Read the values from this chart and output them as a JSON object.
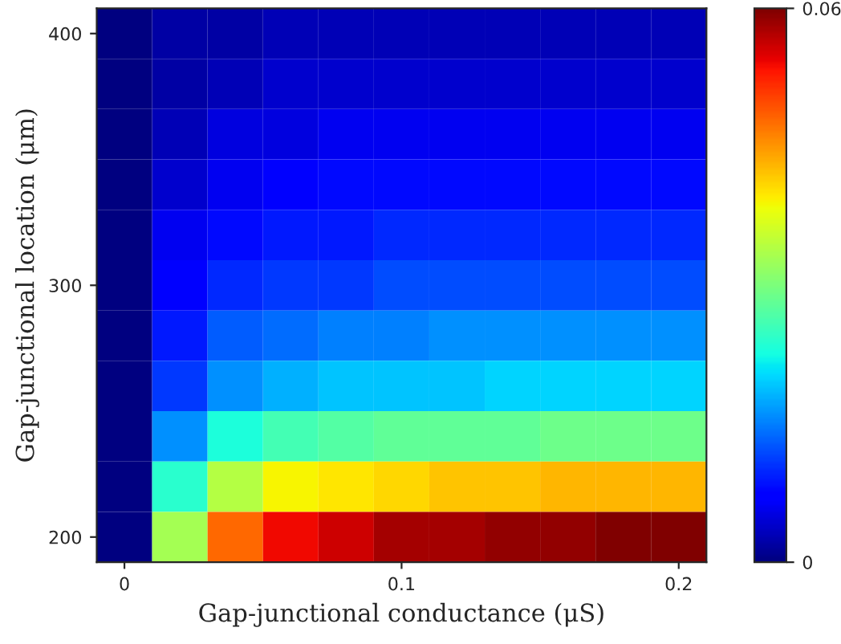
{
  "chart_data": {
    "type": "heatmap",
    "xlabel": "Gap-junctional conductance (μS)",
    "ylabel": "Gap-junctional location (μm)",
    "categories": [
      "0",
      null,
      null,
      null,
      null,
      "0.1",
      null,
      null,
      null,
      null,
      "0.2"
    ],
    "y_categories": [
      "400",
      null,
      null,
      null,
      null,
      "300",
      null,
      null,
      null,
      null,
      "200"
    ],
    "cells": [
      [
        0,
        0.002,
        0.002,
        0.003,
        0.003,
        0.003,
        0.003,
        0.003,
        0.003,
        0.003,
        0.003
      ],
      [
        0,
        0.002,
        0.003,
        0.004,
        0.004,
        0.004,
        0.004,
        0.004,
        0.004,
        0.004,
        0.004
      ],
      [
        0,
        0.003,
        0.005,
        0.005,
        0.006,
        0.006,
        0.006,
        0.006,
        0.006,
        0.006,
        0.006
      ],
      [
        0,
        0.004,
        0.006,
        0.007,
        0.008,
        0.008,
        0.008,
        0.008,
        0.008,
        0.008,
        0.008
      ],
      [
        0,
        0.006,
        0.008,
        0.009,
        0.009,
        0.01,
        0.01,
        0.01,
        0.01,
        0.01,
        0.01
      ],
      [
        0,
        0.007,
        0.01,
        0.011,
        0.011,
        0.012,
        0.012,
        0.012,
        0.012,
        0.012,
        0.012
      ],
      [
        0,
        0.009,
        0.013,
        0.014,
        0.015,
        0.015,
        0.016,
        0.016,
        0.016,
        0.016,
        0.016
      ],
      [
        0,
        0.011,
        0.016,
        0.018,
        0.019,
        0.019,
        0.019,
        0.02,
        0.02,
        0.02,
        0.02
      ],
      [
        0,
        0.016,
        0.023,
        0.026,
        0.027,
        0.028,
        0.028,
        0.028,
        0.029,
        0.029,
        0.029
      ],
      [
        0,
        0.024,
        0.034,
        0.039,
        0.04,
        0.041,
        0.042,
        0.042,
        0.043,
        0.043,
        0.043
      ],
      [
        0,
        0.033,
        0.048,
        0.054,
        0.056,
        0.058,
        0.058,
        0.059,
        0.059,
        0.06,
        0.06
      ]
    ],
    "clim": [
      0,
      0.06
    ],
    "cticks": [
      0,
      0.06
    ]
  }
}
